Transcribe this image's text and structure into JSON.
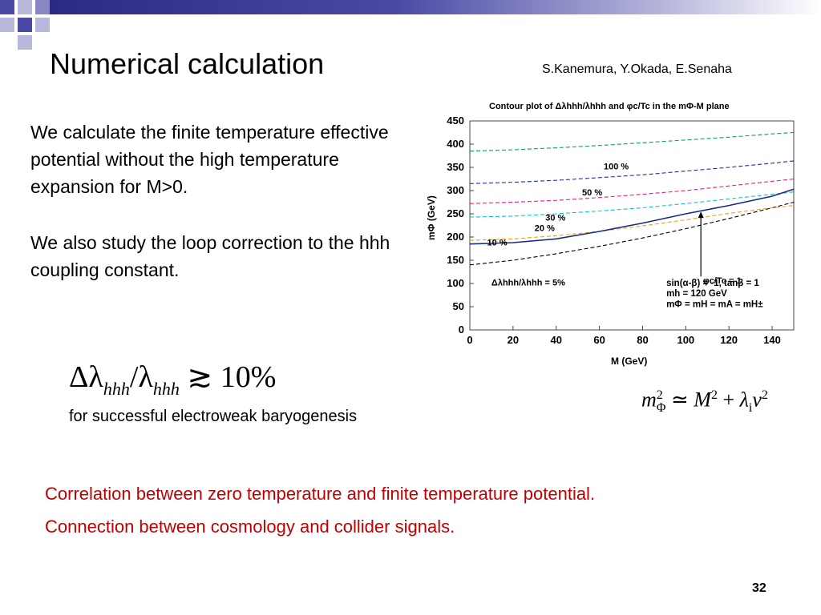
{
  "slide": {
    "title": "Numerical calculation",
    "authors": "S.Kanemura, Y.Okada, E.Senaha",
    "paragraph1": "We calculate the finite temperature effective potential without the high temperature expansion for  M>0.",
    "paragraph2": "We also study the loop correction to the hhh coupling constant.",
    "formula_delta": {
      "lhs_symbol": "Δλ",
      "lhs_sub": "hhh",
      "slash": "/",
      "rhs_symbol": "λ",
      "rhs_sub": "hhh",
      "relation": "≳",
      "value": "10%"
    },
    "formula_mass": {
      "m": "m",
      "m_sup": "2",
      "m_sub": "Φ",
      "approx": "≃",
      "M": "M",
      "M_sup": "2",
      "plus": "+",
      "lambda": "λ",
      "lambda_sub": "i",
      "v": "v",
      "v_sup": "2"
    },
    "caption": "for successful electroweak baryogenesis",
    "red_line1": "Correlation between zero temperature and finite temperature  potential.",
    "red_line2": "Connection between cosmology and collider signals.",
    "slide_number": "32",
    "colors": {
      "accent_red": "#c00000",
      "bar_dark": "#2a2a86",
      "square_blue": "#4a4aa6",
      "square_light": "#b8b8dc"
    }
  },
  "chart_data": {
    "type": "line",
    "title": "Contour plot of Δλhhh/λhhh and φc/Tc in the mΦ-M plane",
    "xlabel": "M (GeV)",
    "ylabel": "mΦ (GeV)",
    "xlim": [
      0,
      150
    ],
    "ylim": [
      0,
      450
    ],
    "xticks": [
      0,
      20,
      40,
      60,
      80,
      100,
      120,
      140
    ],
    "yticks": [
      0,
      50,
      100,
      150,
      200,
      250,
      300,
      350,
      400,
      450
    ],
    "series": [
      {
        "name": "Δλhhh/λhhh = 5%",
        "label": "Δλhhh/λhhh = 5%",
        "color": "#000000",
        "style": "dashed",
        "x": [
          0,
          20,
          40,
          60,
          80,
          100,
          120,
          140,
          150
        ],
        "y": [
          140,
          150,
          164,
          180,
          198,
          218,
          240,
          263,
          275
        ]
      },
      {
        "name": "10 %",
        "label": "10 %",
        "color": "#e8a020",
        "style": "dashed",
        "x": [
          0,
          20,
          40,
          60,
          80,
          100,
          120,
          140,
          150
        ],
        "y": [
          193,
          196,
          203,
          212,
          224,
          237,
          251,
          263,
          268
        ]
      },
      {
        "name": "20 %",
        "label": "20 %",
        "color": "#10c0d0",
        "style": "dashed",
        "x": [
          0,
          20,
          40,
          60,
          80,
          100,
          120,
          140,
          150
        ],
        "y": [
          243,
          245,
          250,
          256,
          263,
          272,
          282,
          292,
          297
        ]
      },
      {
        "name": "30 %",
        "label": "30 %",
        "color": "#e0208a",
        "style": "dashed",
        "x": [
          0,
          20,
          40,
          60,
          80,
          100,
          120,
          140,
          150
        ],
        "y": [
          272,
          275,
          279,
          285,
          292,
          300,
          310,
          320,
          325
        ]
      },
      {
        "name": "50 %",
        "label": "50 %",
        "color": "#2030a0",
        "style": "dashed",
        "x": [
          0,
          20,
          40,
          60,
          80,
          100,
          120,
          140,
          150
        ],
        "y": [
          315,
          318,
          322,
          328,
          334,
          342,
          350,
          359,
          364
        ]
      },
      {
        "name": "100 %",
        "label": "100 %",
        "color": "#10a050",
        "style": "dashed",
        "x": [
          0,
          20,
          40,
          60,
          80,
          100,
          120,
          140,
          150
        ],
        "y": [
          385,
          388,
          392,
          397,
          403,
          409,
          415,
          422,
          425
        ]
      },
      {
        "name": "φc/Tc = 1",
        "label": "",
        "color": "#1a2a8a",
        "style": "solid",
        "x": [
          0,
          20,
          40,
          60,
          80,
          100,
          120,
          140,
          150
        ],
        "y": [
          185,
          188,
          196,
          212,
          230,
          250,
          268,
          288,
          303
        ]
      }
    ],
    "annotations": [
      {
        "text": "φc/Tc = 1",
        "x": 108,
        "y": 100
      },
      {
        "text": "sin(α-β) = -1, tanβ = 1",
        "x": 91,
        "y": 95
      },
      {
        "text": "mh = 120 GeV",
        "x": 91,
        "y": 72
      },
      {
        "text": "mΦ = mH = mA = mH±",
        "x": 91,
        "y": 49
      }
    ],
    "grid": false,
    "legend": "inline labels"
  }
}
